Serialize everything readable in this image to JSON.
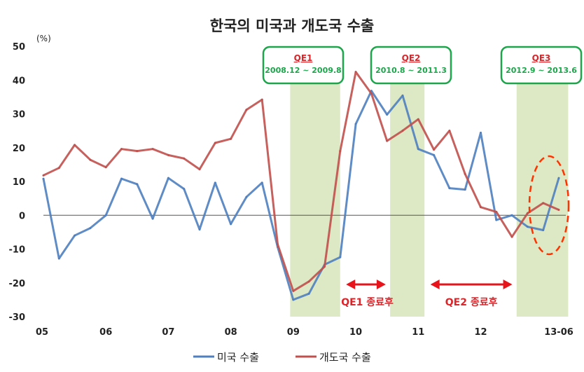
{
  "chart_data": {
    "type": "line",
    "title": "한국의 미국과 개도국 수출",
    "y_unit": "(%)",
    "ylim": [
      -30,
      50
    ],
    "y_ticks": [
      50,
      40,
      30,
      20,
      10,
      0,
      -10,
      -20,
      -30
    ],
    "x_tick_labels": [
      "05",
      "06",
      "07",
      "08",
      "09",
      "10",
      "11",
      "12",
      "13-06"
    ],
    "x_tick_positions": [
      0,
      4,
      8,
      12,
      16,
      20,
      24,
      28,
      33
    ],
    "x_range": [
      0,
      34
    ],
    "series": [
      {
        "name": "미국 수출",
        "color": "#4f7fbf",
        "x": [
          0,
          1,
          2,
          3,
          4,
          5,
          6,
          7,
          8,
          9,
          10,
          11,
          12,
          13,
          14,
          15,
          16,
          17,
          18,
          19,
          20,
          21,
          22,
          23,
          24,
          25,
          26,
          27,
          28,
          29,
          30,
          31,
          32,
          33
        ],
        "values": [
          10.8,
          -12.8,
          -6.0,
          -3.8,
          0.0,
          10.8,
          9.2,
          -1.0,
          11.0,
          7.8,
          -4.2,
          9.6,
          -2.6,
          5.4,
          9.6,
          -9.4,
          -25.0,
          -23.2,
          -14.6,
          -12.4,
          27.0,
          36.8,
          29.8,
          35.4,
          19.6,
          17.8,
          8.0,
          7.6,
          24.4,
          -1.4,
          0.0,
          -3.4,
          -4.4,
          11.0
        ]
      },
      {
        "name": "개도국 수출",
        "color": "#c0504d",
        "x": [
          0,
          1,
          2,
          3,
          4,
          5,
          6,
          7,
          8,
          9,
          10,
          11,
          12,
          13,
          14,
          15,
          16,
          17,
          18,
          19,
          20,
          21,
          22,
          23,
          24,
          25,
          26,
          27,
          28,
          29,
          30,
          31,
          32,
          33
        ],
        "values": [
          11.8,
          14.0,
          20.8,
          16.4,
          14.2,
          19.6,
          19.0,
          19.6,
          17.8,
          16.8,
          13.6,
          21.4,
          22.6,
          31.2,
          34.2,
          -8.6,
          -22.4,
          -19.6,
          -15.2,
          19.0,
          42.4,
          36.0,
          22.0,
          25.0,
          28.4,
          19.4,
          25.0,
          12.2,
          2.4,
          1.0,
          -6.4,
          0.6,
          3.6,
          1.6
        ]
      }
    ],
    "shaded_periods": [
      {
        "label": "QE1",
        "range": "2008.12 ~ 2009.8",
        "x_start": 15.8,
        "x_end": 19.0
      },
      {
        "label": "QE2",
        "range": "2010.8 ~ 2011.3",
        "x_start": 22.2,
        "x_end": 24.4
      },
      {
        "label": "QE3",
        "range": "2012.9 ~ 2013.6",
        "x_start": 30.3,
        "x_end": 33.6
      }
    ],
    "gap_annotations": [
      {
        "label": "QE1 종료후",
        "x_start": 19.2,
        "x_end": 22.1
      },
      {
        "label": "QE2 종료후",
        "x_start": 24.6,
        "x_end": 30.2
      }
    ],
    "legend": "bottom",
    "grid": false
  }
}
